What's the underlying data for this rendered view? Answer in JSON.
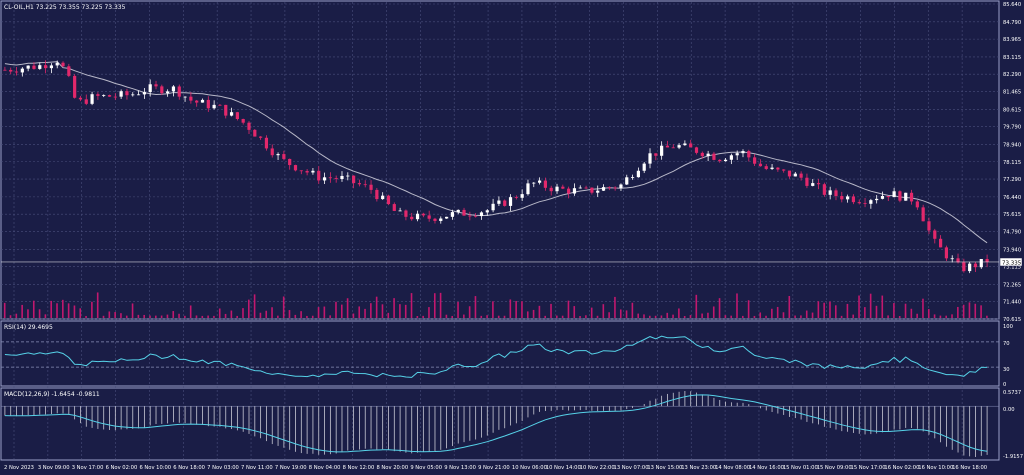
{
  "chart_data": [
    {
      "type": "candlestick",
      "title": "CL-OIL,H1  73.225 73.355 73.225 73.335",
      "ylim": [
        70.615,
        85.64
      ],
      "y_ticks": [
        "85.640",
        "84.790",
        "83.965",
        "83.115",
        "82.290",
        "81.465",
        "80.615",
        "79.790",
        "78.940",
        "78.115",
        "77.290",
        "76.440",
        "75.615",
        "74.790",
        "73.940",
        "73.115",
        "72.265",
        "71.440",
        "70.615"
      ],
      "last_price_label": "73.335",
      "moving_average": "on",
      "volume_bars": "on",
      "grid": "dashed",
      "colors": {
        "background": "#1a1d46",
        "bull": "#ffffff",
        "bear": "#e2286b",
        "ma": "#b8b8c8",
        "volume": "#c2186e",
        "grid": "#4a4f7c"
      }
    },
    {
      "type": "line",
      "title": "RSI(14) 29.4695",
      "ylim": [
        0,
        100
      ],
      "y_ticks": [
        "100",
        "70",
        "30",
        "0"
      ],
      "levels": [
        70,
        30
      ],
      "colors": {
        "line": "#56d2e8"
      }
    },
    {
      "type": "histogram+line",
      "title": "MACD(12,26,9) -1.6454 -0.9811",
      "ylim": [
        -1.9157,
        0.5737
      ],
      "y_ticks": [
        "0.5737",
        "0.00",
        "-1.9157"
      ],
      "colors": {
        "line": "#56d2e8",
        "histogram": "#c8c8d4"
      }
    }
  ],
  "x_labels": [
    "2 Nov 2023",
    "3 Nov 09:00",
    "3 Nov 17:00",
    "6 Nov 02:00",
    "6 Nov 10:00",
    "6 Nov 18:00",
    "7 Nov 03:00",
    "7 Nov 11:00",
    "7 Nov 19:00",
    "8 Nov 04:00",
    "8 Nov 12:00",
    "8 Nov 20:00",
    "9 Nov 05:00",
    "9 Nov 13:00",
    "9 Nov 21:00",
    "10 Nov 06:00",
    "10 Nov 14:00",
    "10 Nov 22:00",
    "13 Nov 07:00",
    "13 Nov 15:00",
    "13 Nov 23:00",
    "14 Nov 08:00",
    "14 Nov 16:00",
    "15 Nov 01:00",
    "15 Nov 09:00",
    "15 Nov 17:00",
    "16 Nov 02:00",
    "16 Nov 10:00",
    "16 Nov 18:00"
  ]
}
